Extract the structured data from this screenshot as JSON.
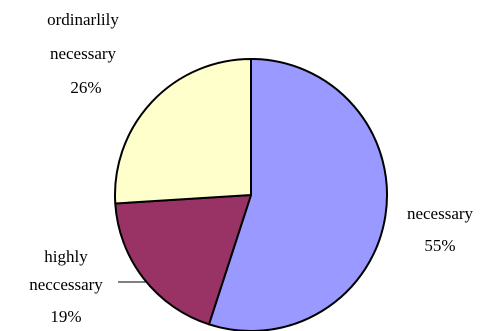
{
  "chart_data": {
    "type": "pie",
    "title": "",
    "slices": [
      {
        "label": "necessary",
        "value": 55,
        "value_label": "55%",
        "color": "#9999ff"
      },
      {
        "label": "highly neccessary",
        "label_lines": [
          "highly",
          "neccessary"
        ],
        "value": 19,
        "value_label": "19%",
        "color": "#993366"
      },
      {
        "label": "ordinarlily necessary",
        "label_lines": [
          "ordinarlily",
          "necessary"
        ],
        "value": 26,
        "value_label": "26%",
        "color": "#ffffcc"
      }
    ],
    "start": "12 o'clock",
    "direction": "clockwise",
    "legend": "none",
    "outline_color": "#000000"
  }
}
